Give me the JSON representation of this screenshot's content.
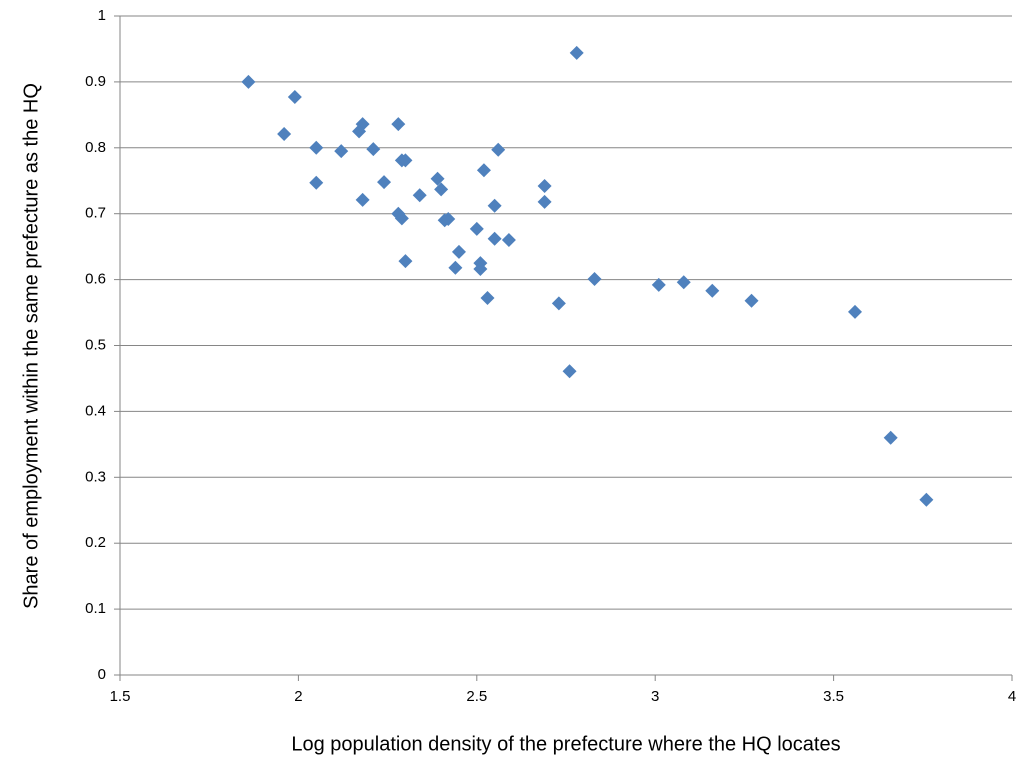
{
  "chart_data": {
    "type": "scatter",
    "x_label": "Log population density of the prefecture where the HQ locates",
    "y_label": "Share of employment within the same prefecture as the HQ",
    "color": "#4f81bd",
    "grid": true,
    "xlim": [
      1.5,
      4
    ],
    "xticks": [
      1.5,
      2,
      2.5,
      3,
      3.5,
      4
    ],
    "ylim": [
      0,
      1
    ],
    "yticks": [
      0,
      0.1,
      0.2,
      0.3,
      0.4,
      0.5,
      0.6,
      0.7,
      0.8,
      0.9,
      1
    ],
    "x": [
      1.86,
      1.96,
      1.99,
      2.05,
      2.05,
      2.12,
      2.18,
      2.17,
      2.21,
      2.18,
      2.24,
      2.28,
      2.29,
      2.3,
      2.28,
      2.29,
      2.3,
      2.34,
      2.39,
      2.4,
      2.41,
      2.42,
      2.45,
      2.44,
      2.5,
      2.52,
      2.51,
      2.51,
      2.53,
      2.55,
      2.55,
      2.56,
      2.59,
      2.69,
      2.69,
      2.73,
      2.76,
      2.78,
      2.83,
      3.01,
      3.08,
      3.16,
      3.27,
      3.56,
      3.66,
      3.76
    ],
    "y": [
      0.9,
      0.821,
      0.877,
      0.8,
      0.747,
      0.795,
      0.836,
      0.825,
      0.798,
      0.721,
      0.748,
      0.836,
      0.781,
      0.781,
      0.7,
      0.693,
      0.628,
      0.728,
      0.753,
      0.737,
      0.69,
      0.692,
      0.642,
      0.618,
      0.677,
      0.766,
      0.625,
      0.616,
      0.572,
      0.712,
      0.662,
      0.797,
      0.66,
      0.742,
      0.718,
      0.564,
      0.461,
      0.944,
      0.601,
      0.592,
      0.596,
      0.583,
      0.568,
      0.551,
      0.36,
      0.266
    ]
  }
}
